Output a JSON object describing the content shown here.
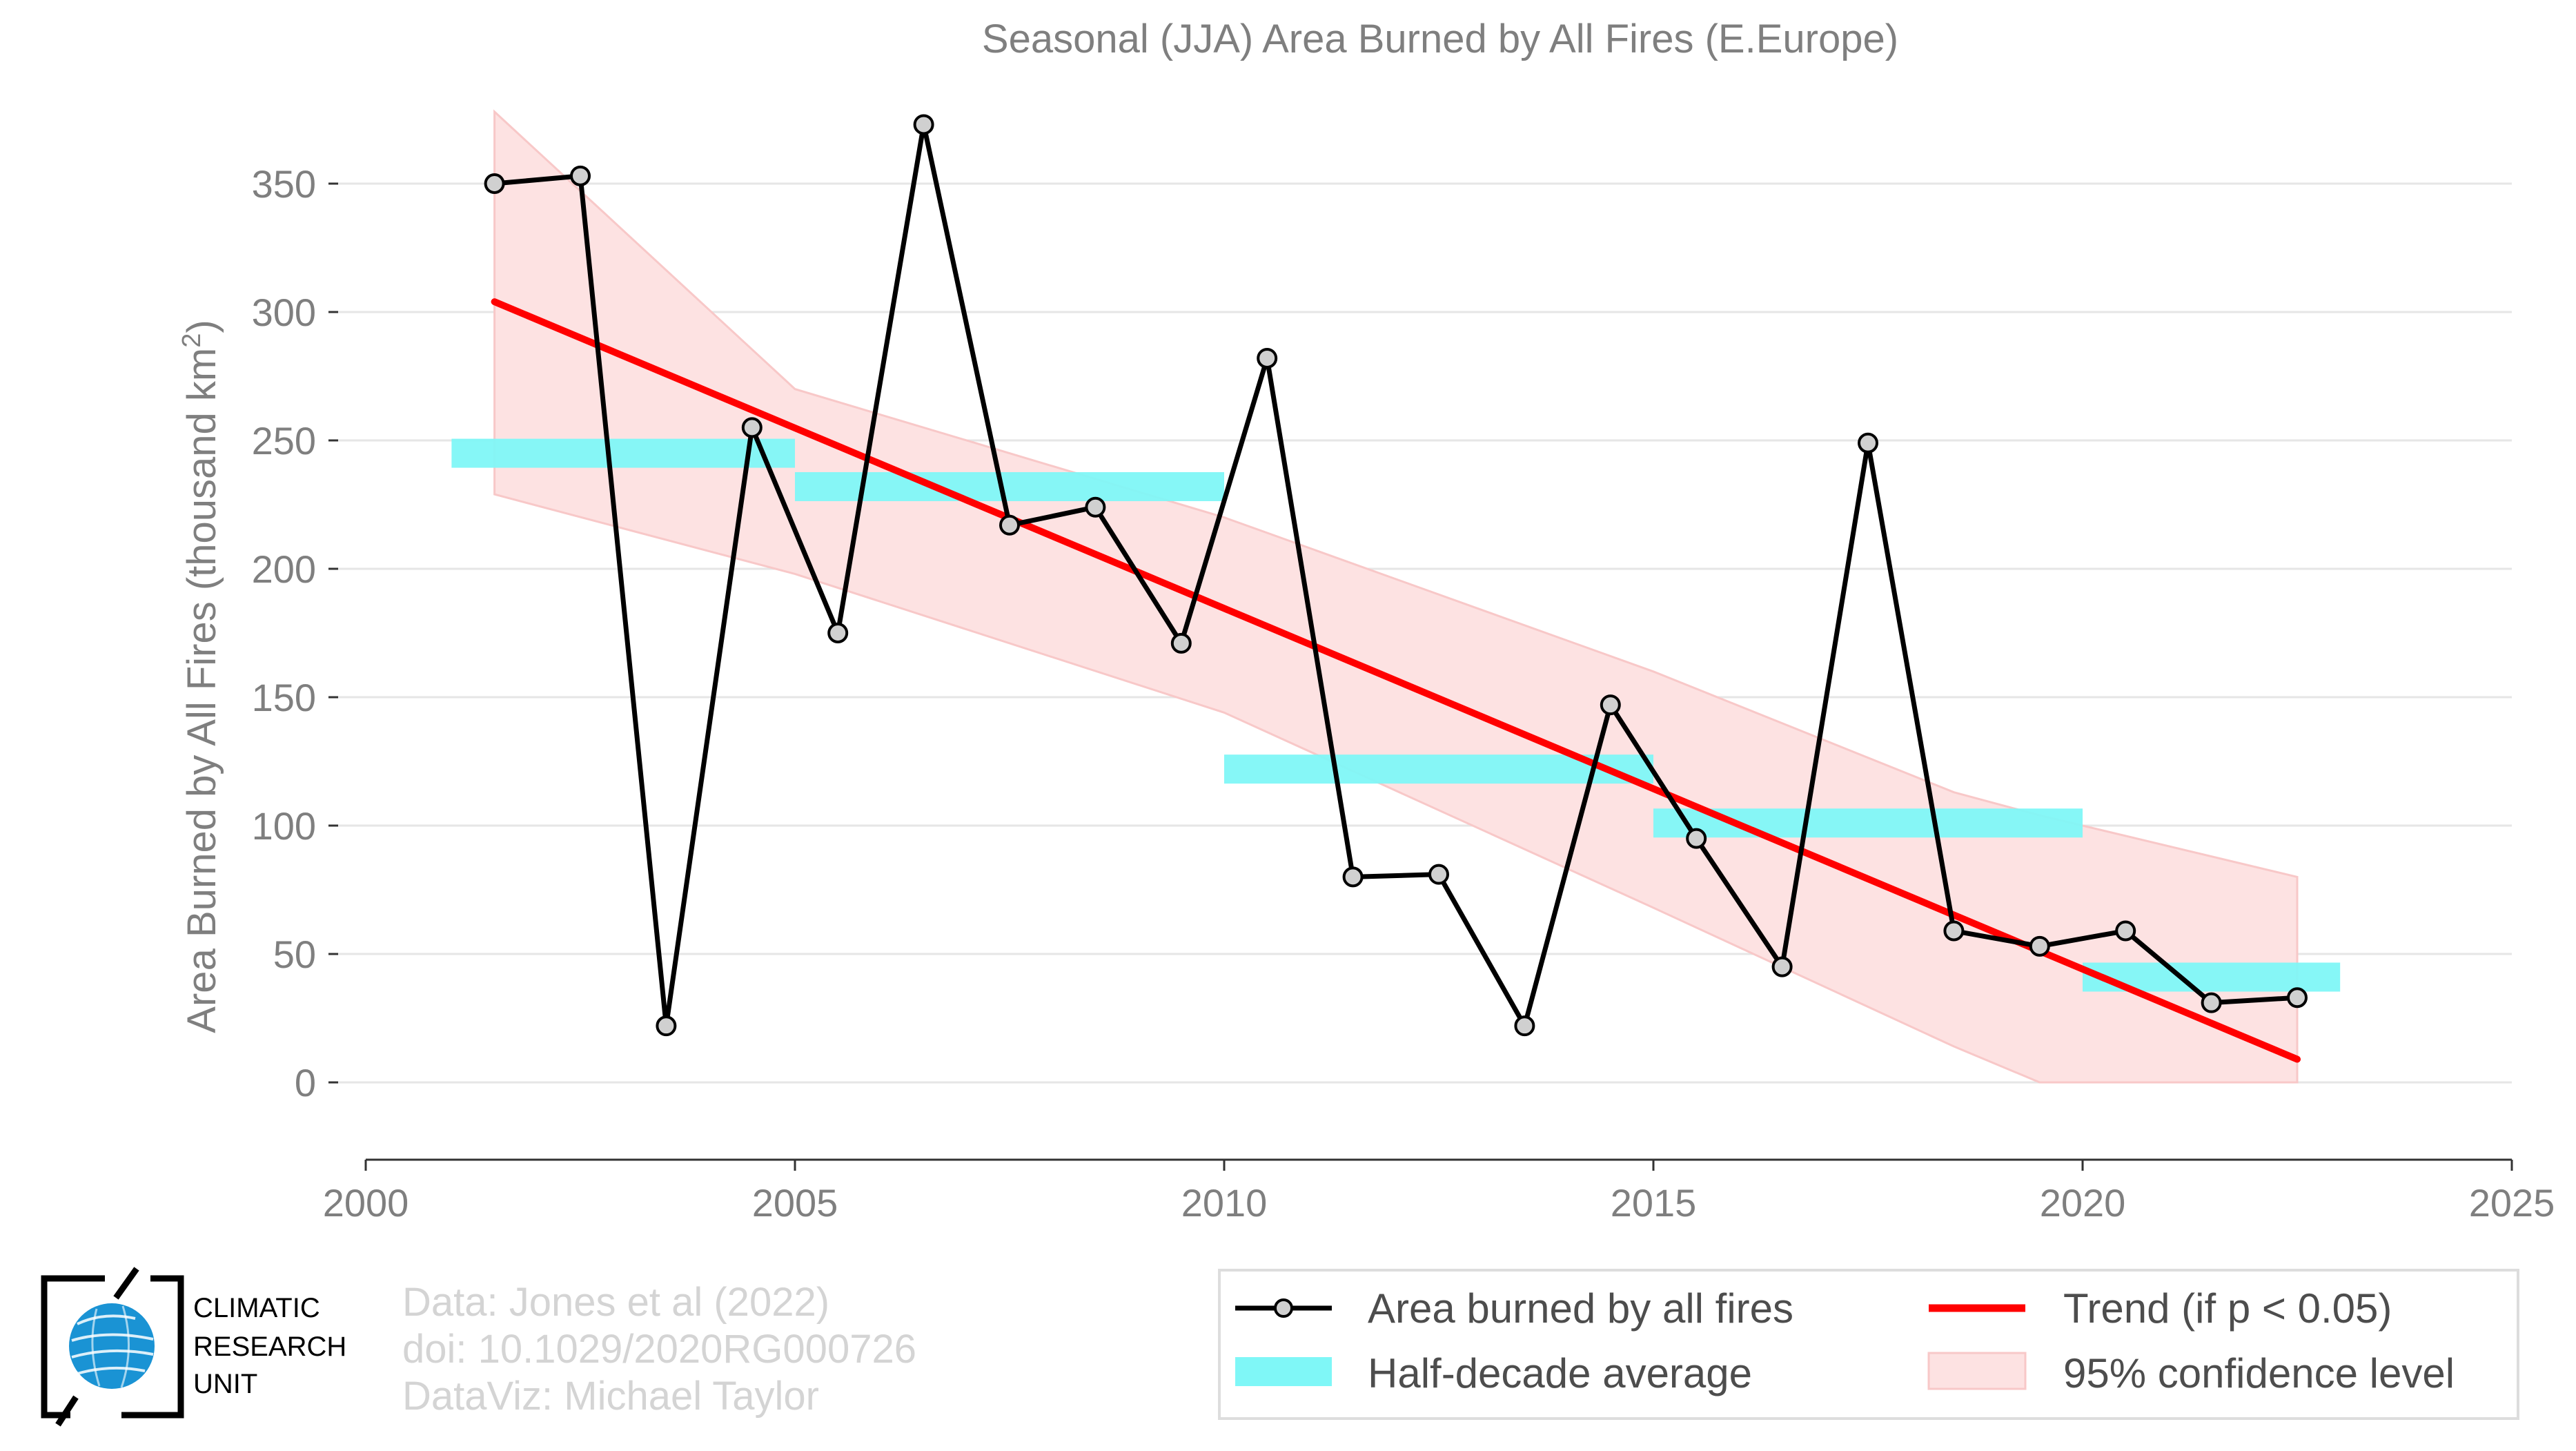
{
  "chart_data": {
    "type": "line",
    "title": "Seasonal (JJA) Area Burned by All Fires (E.Europe)",
    "ylabel_prefix": "Area Burned by All Fires (thousand km",
    "ylabel_sup": "2",
    "ylabel_suffix": ")",
    "xlim": [
      2000,
      2025
    ],
    "ylim": [
      -30,
      385
    ],
    "xticks": [
      2000,
      2005,
      2010,
      2015,
      2020,
      2025
    ],
    "yticks": [
      0,
      50,
      100,
      150,
      200,
      250,
      300,
      350
    ],
    "grid": "horizontal",
    "series": [
      {
        "name": "Area burned by all fires",
        "x": [
          2001.5,
          2002.5,
          2003.5,
          2004.5,
          2005.5,
          2006.5,
          2007.5,
          2008.5,
          2009.5,
          2010.5,
          2011.5,
          2012.5,
          2013.5,
          2014.5,
          2015.5,
          2016.5,
          2017.5,
          2018.5,
          2019.5,
          2020.5,
          2021.5,
          2022.5
        ],
        "y": [
          350,
          353,
          22,
          255,
          175,
          373,
          217,
          224,
          171,
          282,
          80,
          81,
          22,
          147,
          95,
          45,
          249,
          59,
          53,
          59,
          31,
          33
        ]
      }
    ],
    "half_decade_average": {
      "name": "Half-decade average",
      "segments": [
        {
          "x0": 2001.0,
          "x1": 2005.0,
          "y": 245
        },
        {
          "x0": 2005.0,
          "x1": 2010.0,
          "y": 232
        },
        {
          "x0": 2010.0,
          "x1": 2015.0,
          "y": 122
        },
        {
          "x0": 2015.0,
          "x1": 2020.0,
          "y": 101
        },
        {
          "x0": 2020.0,
          "x1": 2023.0,
          "y": 41
        }
      ]
    },
    "trend": {
      "name": "Trend (if p < 0.05)",
      "x": [
        2001.5,
        2022.5
      ],
      "y": [
        304,
        9
      ]
    },
    "confidence_band": {
      "name": "95% confidence level",
      "x": [
        2001.5,
        2005,
        2010,
        2015,
        2018.5,
        2019.5,
        2022.5
      ],
      "upper": [
        378,
        270,
        220,
        160,
        113,
        104,
        80
      ],
      "lower": [
        229,
        198,
        144,
        68,
        14,
        0,
        0
      ]
    },
    "legend": {
      "placement": "bottom-right",
      "entries": [
        "Area burned by all fires",
        "Trend (if p < 0.05)",
        "Half-decade average",
        "95% confidence level"
      ]
    },
    "colors": {
      "series_line": "#000000",
      "marker_fill": "#d0d0d0",
      "trend": "#ff0000",
      "half_decade": "#7ff7f7",
      "band_fill": "#fde2e2",
      "band_edge": "#f8c8c8",
      "grid": "#e6e6e6",
      "axis_text": "#7f7f7f"
    }
  },
  "logo": {
    "line1": "CLIMATIC",
    "line2": "RESEARCH",
    "line3": "UNIT",
    "icon": "globe-icon"
  },
  "credits": {
    "line1": "Data: Jones et al (2022)",
    "line2": "doi: 10.1029/2020RG000726",
    "line3": "DataViz: Michael Taylor"
  }
}
